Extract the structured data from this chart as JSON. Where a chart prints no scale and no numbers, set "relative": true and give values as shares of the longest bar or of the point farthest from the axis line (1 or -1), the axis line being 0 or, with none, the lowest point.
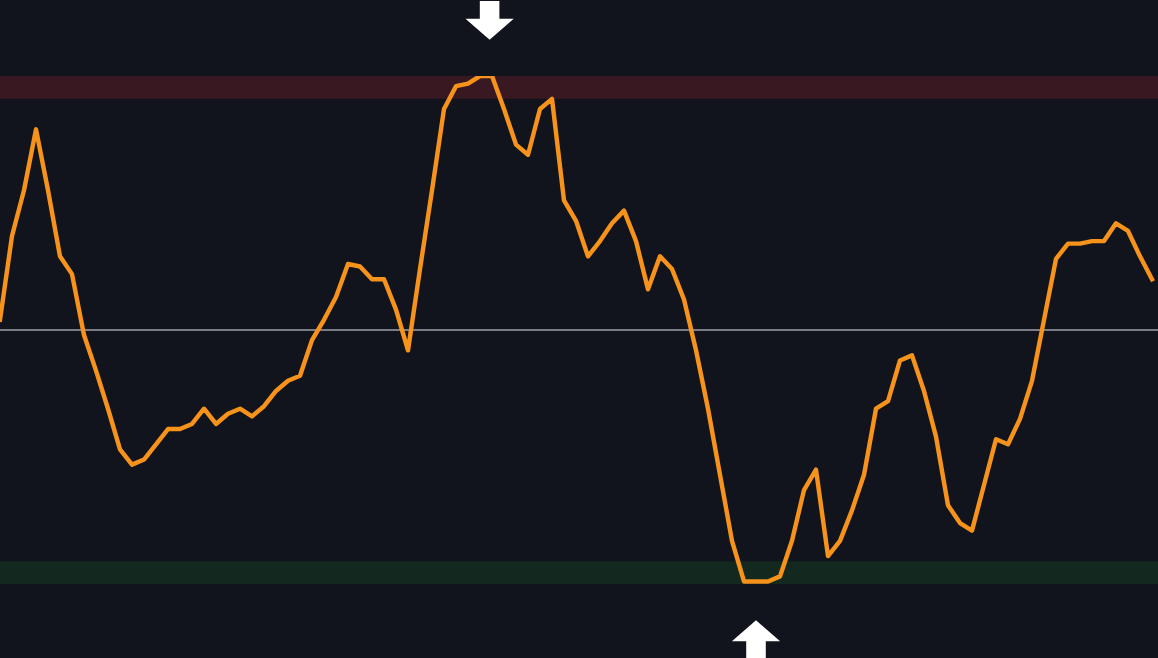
{
  "chart_data": {
    "type": "line",
    "relative": true,
    "categories": [
      null,
      null,
      null,
      null,
      null,
      null,
      null,
      null,
      null,
      null,
      null,
      null,
      null,
      null,
      null,
      null,
      null,
      null,
      null,
      null,
      null,
      null,
      null,
      null,
      null,
      null,
      null,
      null,
      null,
      null,
      null,
      null,
      null,
      null,
      null,
      null,
      null,
      null,
      null,
      null,
      null,
      null,
      null,
      null,
      null,
      null,
      null,
      null,
      null,
      null,
      null,
      null,
      null,
      null,
      null,
      null,
      null,
      null,
      null,
      null,
      null,
      null,
      null,
      null,
      null,
      null,
      null,
      null,
      null,
      null,
      null,
      null,
      null,
      null,
      null,
      null,
      null,
      null,
      null,
      null,
      null,
      null,
      null,
      null,
      null,
      null,
      null,
      null,
      null,
      null,
      null,
      null,
      null,
      null,
      null,
      null,
      null
    ],
    "series": [
      {
        "color": "#f7931a",
        "values": [
          0.04,
          0.37,
          0.55,
          0.79,
          0.55,
          0.29,
          0.22,
          -0.02,
          -0.16,
          -0.31,
          -0.47,
          -0.53,
          -0.51,
          -0.45,
          -0.39,
          -0.39,
          -0.37,
          -0.31,
          -0.37,
          -0.33,
          -0.31,
          -0.34,
          -0.3,
          -0.24,
          -0.2,
          -0.18,
          -0.04,
          0.04,
          0.13,
          0.26,
          0.25,
          0.2,
          0.2,
          0.08,
          -0.08,
          0.24,
          0.55,
          0.87,
          0.96,
          0.97,
          1.0,
          1.0,
          0.87,
          0.73,
          0.69,
          0.87,
          0.91,
          0.51,
          0.43,
          0.29,
          0.35,
          0.42,
          0.47,
          0.35,
          0.16,
          0.29,
          0.24,
          0.12,
          -0.08,
          -0.31,
          -0.57,
          -0.83,
          -0.99,
          -0.99,
          -0.99,
          -0.97,
          -0.83,
          -0.63,
          -0.55,
          -0.89,
          -0.83,
          -0.71,
          -0.57,
          -0.31,
          -0.28,
          -0.12,
          -0.1,
          -0.24,
          -0.42,
          -0.69,
          -0.76,
          -0.79,
          -0.61,
          -0.43,
          -0.45,
          -0.35,
          -0.2,
          0.04,
          0.28,
          0.34,
          0.34,
          0.35,
          0.35,
          0.42,
          0.39,
          0.29,
          0.2
        ]
      }
    ],
    "bands": [
      {
        "axis": "y",
        "from": 0.91,
        "to": 1.0,
        "color": "#3a1822"
      },
      {
        "axis": "y",
        "from": -1.0,
        "to": -0.91,
        "color": "#13281f"
      }
    ],
    "grid": false,
    "legend": false
  }
}
